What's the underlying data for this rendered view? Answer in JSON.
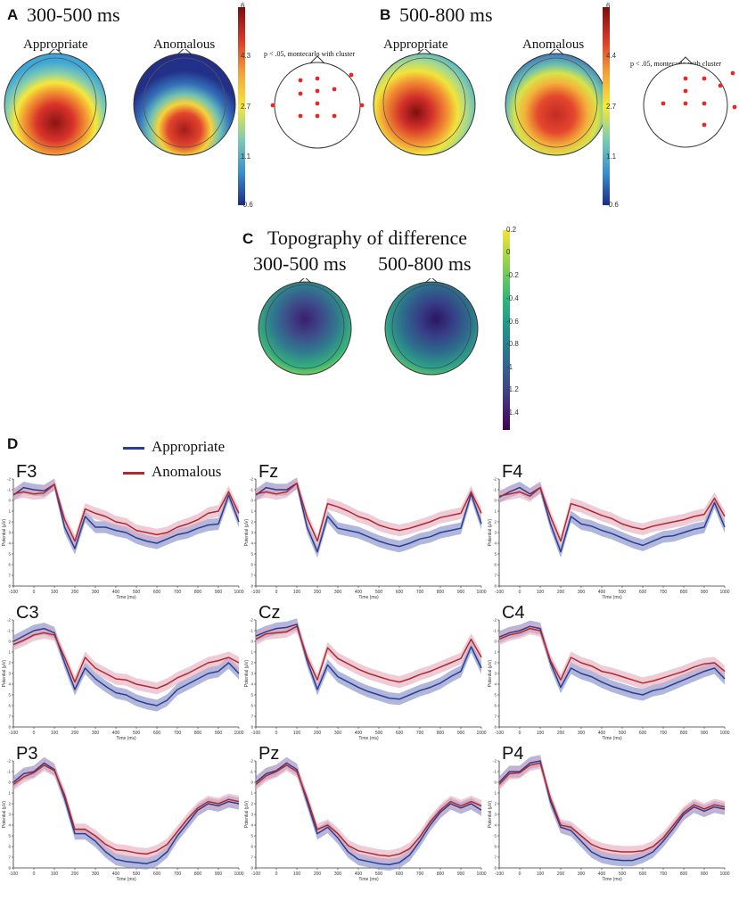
{
  "panel_a": {
    "letter": "A",
    "title": "300-500 ms",
    "cond1": "Appropriate",
    "cond2": "Anomalous",
    "stat": "p < .05, montecarlo with cluster",
    "colorbar": [
      "6",
      "4.3",
      "2.7",
      "1.1",
      "-0.6"
    ]
  },
  "panel_b": {
    "letter": "B",
    "title": "500-800 ms",
    "cond1": "Appropriate",
    "cond2": "Anomalous",
    "stat": "p < .05, montecarlo with cluster",
    "colorbar": [
      "6",
      "4.4",
      "2.7",
      "1.1",
      "-0.6"
    ]
  },
  "panel_c": {
    "letter": "C",
    "title": "Topography of difference",
    "sub1": "300-500 ms",
    "sub2": "500-800 ms",
    "colorbar": [
      "0.2",
      "0",
      "-0.2",
      "-0.4",
      "-0.6",
      "-0.8",
      "-1",
      "-1.2",
      "-1.4"
    ]
  },
  "panel_d": {
    "letter": "D",
    "legend": [
      {
        "name": "Appropriate",
        "color": "#2a3f8f"
      },
      {
        "name": "Anomalous",
        "color": "#b0292d"
      }
    ]
  },
  "colors": {
    "appropriate": "#2a3f8f",
    "anomalous": "#b0292d",
    "appropriate_band": "#7d86c4",
    "anomalous_band": "#e3aabc"
  },
  "chart_data": {
    "type": "line",
    "xlabel": "Time (ms)",
    "ylabel": "Potential (μV)",
    "x_ticks": [
      "-100",
      "0",
      "100",
      "200",
      "300",
      "400",
      "500",
      "600",
      "700",
      "800",
      "900",
      "1000"
    ],
    "y_ticks": [
      "-2",
      "-1",
      "0",
      "1",
      "2",
      "3",
      "4",
      "5",
      "6",
      "7",
      "8"
    ],
    "ylim": [
      -2,
      8
    ],
    "x": [
      -100,
      -50,
      0,
      50,
      100,
      150,
      200,
      250,
      300,
      350,
      400,
      450,
      500,
      550,
      600,
      650,
      700,
      750,
      800,
      850,
      900,
      950,
      1000
    ],
    "channels": [
      {
        "name": "F3",
        "appropriate": [
          -0.5,
          -1.2,
          -1,
          -0.9,
          -1.5,
          2.5,
          4.5,
          1.5,
          2.5,
          2.5,
          2.8,
          3,
          3.5,
          3.8,
          4,
          3.6,
          3.2,
          3,
          2.6,
          2.3,
          2.2,
          -0.5,
          2
        ],
        "anomalous": [
          -0.6,
          -0.8,
          -0.6,
          -0.7,
          -1.5,
          1.8,
          3.8,
          0.8,
          1.2,
          1.5,
          2,
          2.2,
          2.8,
          3,
          3.2,
          3,
          2.5,
          2.2,
          1.8,
          1.2,
          1,
          -0.8,
          1.2
        ]
      },
      {
        "name": "Fz",
        "appropriate": [
          -0.5,
          -1.2,
          -1,
          -1,
          -1.6,
          2.5,
          4.8,
          1.5,
          2.6,
          2.8,
          3,
          3.4,
          3.8,
          4.1,
          4.3,
          4,
          3.6,
          3.4,
          3,
          2.8,
          2.6,
          -0.6,
          2.2
        ],
        "anomalous": [
          -0.6,
          -0.8,
          -0.6,
          -0.8,
          -1.6,
          1.6,
          3.8,
          0.3,
          0.6,
          1,
          1.5,
          1.8,
          2.3,
          2.6,
          2.8,
          2.6,
          2.3,
          2,
          1.6,
          1.4,
          1.2,
          -0.8,
          1.2
        ]
      },
      {
        "name": "F4",
        "appropriate": [
          -0.3,
          -0.8,
          -1.2,
          -0.6,
          -1.2,
          2.2,
          4.8,
          1.5,
          2.2,
          2.4,
          2.8,
          3.1,
          3.5,
          3.9,
          4.2,
          3.8,
          3.4,
          3.3,
          3,
          2.7,
          2.5,
          0.2,
          2.5
        ],
        "anomalous": [
          -0.4,
          -0.6,
          -0.8,
          -0.4,
          -1.2,
          1.5,
          3.8,
          0.3,
          0.6,
          1,
          1.4,
          1.7,
          2.2,
          2.5,
          2.7,
          2.4,
          2.2,
          2,
          1.8,
          1.5,
          1.3,
          -0.2,
          1.5
        ]
      },
      {
        "name": "C3",
        "appropriate": [
          0,
          -0.5,
          -1,
          -1.2,
          -0.8,
          2,
          4.5,
          2.5,
          3.5,
          4.2,
          4.8,
          5,
          5.5,
          5.8,
          6,
          5.5,
          4.5,
          4,
          3.5,
          3,
          2.8,
          2,
          3
        ],
        "anomalous": [
          0.3,
          -0.1,
          -0.6,
          -0.8,
          -0.6,
          1.5,
          3.8,
          1.5,
          2.5,
          3,
          3.5,
          3.6,
          4,
          4.2,
          4.4,
          4,
          3.4,
          3,
          2.5,
          2,
          1.8,
          1.5,
          2
        ]
      },
      {
        "name": "Cz",
        "appropriate": [
          -0.5,
          -0.9,
          -1.2,
          -1.3,
          -1.6,
          1.8,
          4.5,
          2.2,
          3.3,
          3.8,
          4.3,
          4.7,
          5,
          5.3,
          5.4,
          5,
          4.6,
          4.3,
          3.9,
          3.3,
          2.8,
          0.5,
          2.5
        ],
        "anomalous": [
          -0.2,
          -0.7,
          -0.8,
          -0.9,
          -1.4,
          1.5,
          3.6,
          0.6,
          1.6,
          2.1,
          2.6,
          3,
          3.3,
          3.6,
          3.8,
          3.5,
          3.1,
          2.8,
          2.4,
          2,
          1.6,
          -0.2,
          1.5
        ]
      },
      {
        "name": "C4",
        "appropriate": [
          -0.4,
          -0.8,
          -1,
          -1.4,
          -1.2,
          2,
          4.3,
          2.5,
          3,
          3.3,
          3.8,
          4.2,
          4.5,
          4.8,
          5,
          4.6,
          4.4,
          4,
          3.6,
          3.2,
          2.8,
          2.5,
          3.5
        ],
        "anomalous": [
          -0.2,
          -0.6,
          -0.8,
          -1.2,
          -1,
          1.8,
          3.6,
          1.5,
          2,
          2.3,
          2.8,
          3,
          3.3,
          3.6,
          3.9,
          3.7,
          3.4,
          3.1,
          2.8,
          2.4,
          2.1,
          2,
          2.8
        ]
      },
      {
        "name": "P3",
        "appropriate": [
          0,
          -0.8,
          -1,
          -1.8,
          -1.2,
          1.5,
          4.8,
          4.8,
          5.5,
          6.5,
          7.2,
          7.4,
          7.5,
          7.6,
          7.3,
          6.5,
          5,
          3.8,
          2.6,
          2,
          2.2,
          1.8,
          2
        ],
        "anomalous": [
          0.2,
          -0.5,
          -0.9,
          -1.6,
          -1.1,
          1.2,
          4.4,
          4.4,
          5,
          5.8,
          6.3,
          6.4,
          6.6,
          6.7,
          6.4,
          5.8,
          4.6,
          3.4,
          2.4,
          1.8,
          2,
          1.6,
          1.8
        ]
      },
      {
        "name": "Pz",
        "appropriate": [
          0,
          -0.8,
          -1.1,
          -1.8,
          -1.2,
          1.8,
          4.8,
          4.2,
          5.2,
          6.5,
          7.2,
          7.4,
          7.6,
          7.7,
          7.5,
          6.8,
          5.5,
          4,
          2.8,
          2,
          2.4,
          2,
          2.6
        ],
        "anomalous": [
          0.2,
          -0.6,
          -1,
          -1.6,
          -1,
          1.5,
          4.4,
          4,
          4.8,
          5.9,
          6.4,
          6.6,
          6.8,
          6.9,
          6.7,
          6.2,
          5.1,
          3.7,
          2.6,
          1.8,
          2.2,
          1.8,
          2.2
        ]
      },
      {
        "name": "P4",
        "appropriate": [
          0,
          -1,
          -1,
          -1.8,
          -2,
          1.8,
          4.2,
          4.5,
          5.5,
          6.5,
          7,
          7.2,
          7.3,
          7.3,
          7,
          6.5,
          5.5,
          4.3,
          3,
          2.3,
          2.7,
          2.3,
          2.5
        ],
        "anomalous": [
          0.2,
          -0.8,
          -0.9,
          -1.6,
          -1.8,
          1.5,
          4,
          4.2,
          5,
          5.8,
          6.2,
          6.4,
          6.5,
          6.5,
          6.4,
          6,
          5.2,
          4,
          2.8,
          2.1,
          2.5,
          2.1,
          2.3
        ]
      }
    ]
  }
}
